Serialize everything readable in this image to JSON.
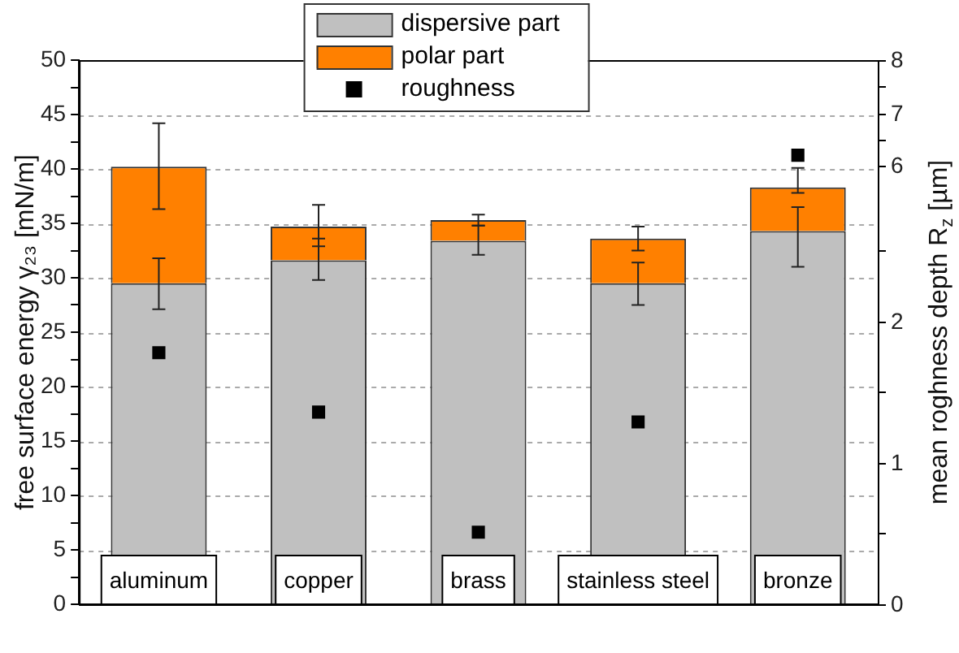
{
  "chart_data": {
    "type": "bar",
    "stacked": true,
    "categories": [
      "aluminum",
      "copper",
      "brass",
      "stainless steel",
      "bronze"
    ],
    "series": [
      {
        "name": "dispersive part",
        "color": "#c0c0c0",
        "values": [
          29.5,
          31.6,
          33.4,
          29.5,
          34.3
        ],
        "errors": [
          [
            27.1,
            31.8
          ],
          [
            29.8,
            33.6
          ],
          [
            32.1,
            34.8
          ],
          [
            27.5,
            31.4
          ],
          [
            31.0,
            36.5
          ]
        ]
      },
      {
        "name": "polar part",
        "color": "#ff8000",
        "values": [
          10.7,
          3.1,
          1.9,
          4.1,
          4.0
        ],
        "errors": [
          [
            36.3,
            44.2
          ],
          [
            32.9,
            36.7
          ],
          [
            34.8,
            35.8
          ],
          [
            32.5,
            34.7
          ],
          [
            37.8,
            40.1
          ]
        ]
      },
      {
        "name": "roughness",
        "type": "scatter",
        "axis": "y2",
        "marker": "square",
        "color": "#000000",
        "values": [
          1.78,
          1.36,
          0.51,
          1.29,
          null
        ]
      },
      {
        "type": "scatter",
        "axis": "y3",
        "marker": "square",
        "color": "#000000",
        "values": [
          null,
          null,
          null,
          null,
          6.2
        ]
      }
    ],
    "ylabel": "free surface energy γ₂₃ [mN/m]",
    "y2label": "mean roghness depth R$_{z}$ [µm]",
    "ylim": [
      0,
      50
    ],
    "yticks": [
      0,
      {
        "value": 2.5,
        "label": null
      },
      5,
      {
        "value": 7.5,
        "label": null
      },
      10,
      {
        "value": 12.5,
        "label": null
      },
      15,
      {
        "value": 17.5,
        "label": null
      },
      20,
      {
        "value": 22.5,
        "label": null
      },
      25,
      {
        "value": 27.5,
        "label": null
      },
      30,
      {
        "value": 32.5,
        "label": null
      },
      35,
      {
        "value": 37.5,
        "label": null
      },
      40,
      {
        "value": 42.5,
        "label": null
      },
      45,
      {
        "value": 47.5,
        "label": null
      },
      50
    ],
    "y2lim": [
      0,
      3.85
    ],
    "y2ticks": [
      0,
      {
        "value": 0.5,
        "label": null
      },
      1,
      {
        "value": 1.5,
        "label": null
      },
      2,
      {
        "value": 2.5,
        "label": null
      }
    ],
    "y3lim": [
      -2.3,
      8
    ],
    "y3ticks": [
      6,
      {
        "value": 6.5,
        "label": null
      },
      7,
      {
        "value": 7.5,
        "label": null
      },
      8
    ],
    "grid": "y",
    "legend": "top"
  }
}
